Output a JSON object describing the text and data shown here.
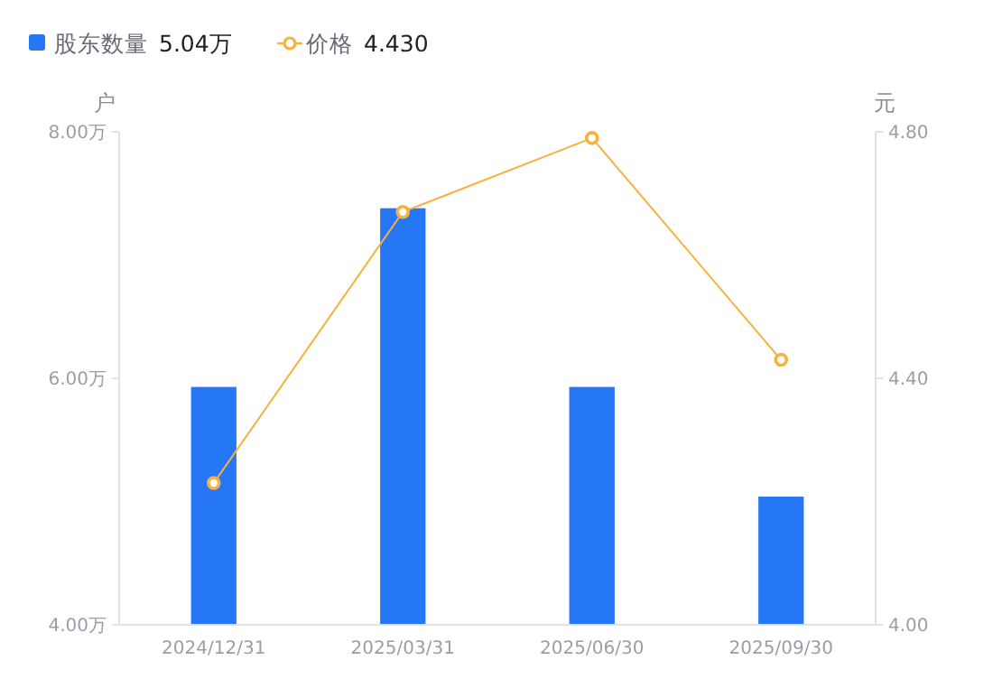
{
  "chart_data": {
    "type": "bar",
    "categories": [
      "2024/12/31",
      "2025/03/31",
      "2025/06/30",
      "2025/09/30"
    ],
    "series": [
      {
        "name": "股东数量",
        "color": "#2677f5",
        "values": [
          5.93,
          7.38,
          5.93,
          5.04
        ]
      },
      {
        "name": "价格",
        "type": "line",
        "axis": "y2",
        "color": "#f9b13d",
        "values": [
          4.23,
          4.67,
          4.79,
          4.43
        ]
      }
    ],
    "ylabel": "户",
    "y2label": "元",
    "ylim": [
      4,
      8
    ],
    "yticks": [
      {
        "value": 4,
        "label": "4.00万"
      },
      {
        "value": 6,
        "label": "6.00万"
      },
      {
        "value": 8,
        "label": "8.00万"
      }
    ],
    "y2lim": [
      4,
      4.8
    ],
    "y2ticks": [
      {
        "value": 4,
        "label": "4.00"
      },
      {
        "value": 4.4,
        "label": "4.40"
      },
      {
        "value": 4.8,
        "label": "4.80"
      }
    ],
    "annotations": [
      "5.04万",
      "4.430"
    ],
    "legend": "top left",
    "grid": false,
    "marker": "circle",
    "line_style": "solid"
  }
}
